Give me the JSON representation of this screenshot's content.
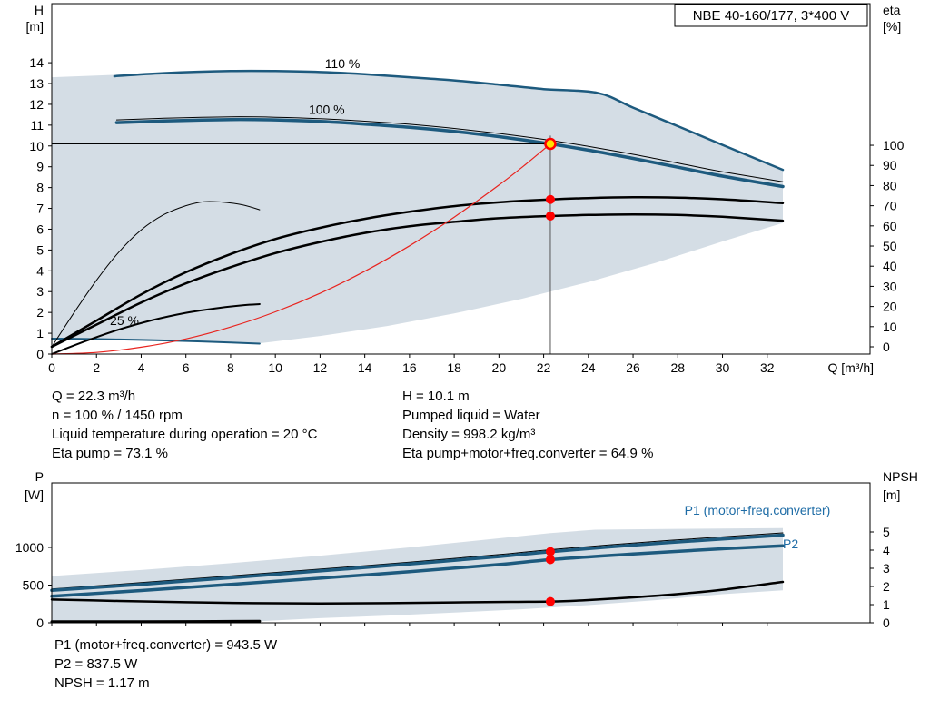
{
  "colors": {
    "blue": "#1d5a7e",
    "label_blue": "#1e6ca6",
    "envelope": "#ccd7e0",
    "red": "#e8241f",
    "red_dot": "#ff0000",
    "duty_yellow": "#ffe000",
    "black": "#000000",
    "duty_line": "#555555"
  },
  "info_block": {
    "left": [
      "Q = 22.3 m³/h",
      "n = 100 % / 1450 rpm",
      "Liquid temperature during operation = 20 °C",
      "Eta pump = 73.1 %"
    ],
    "right": [
      "H = 10.1 m",
      "Pumped liquid = Water",
      "Density = 998.2 kg/m³",
      "Eta pump+motor+freq.converter = 64.9 %"
    ]
  },
  "result_block": [
    "P1 (motor+freq.converter) = 943.5 W",
    "P2 = 837.5 W",
    "NPSH = 1.17 m"
  ],
  "chart_data": [
    {
      "name": "hq-chart",
      "type": "line",
      "title": "NBE 40-160/177, 3*400 V",
      "xlabel": "Q [m³/h]",
      "ylabel_left": [
        "H",
        "[m]"
      ],
      "ylabel_right": [
        "eta",
        "[%]"
      ],
      "xlim": [
        0,
        36.6
      ],
      "ylim_left": [
        0,
        16.84
      ],
      "ylim_right": [
        -3.6,
        170.3
      ],
      "x_ticks": [
        0,
        2,
        4,
        6,
        8,
        10,
        12,
        14,
        16,
        18,
        20,
        22,
        24,
        26,
        28,
        30,
        32
      ],
      "y_ticks_left": [
        0,
        1,
        2,
        3,
        4,
        5,
        6,
        7,
        8,
        9,
        10,
        11,
        12,
        13,
        14
      ],
      "y_ticks_right": [
        0,
        10,
        20,
        30,
        40,
        50,
        60,
        70,
        80,
        90,
        100
      ],
      "envelope": [
        [
          0,
          13.3
        ],
        [
          2,
          13.38
        ],
        [
          4,
          13.47
        ],
        [
          6,
          13.55
        ],
        [
          8,
          13.6
        ],
        [
          10,
          13.6
        ],
        [
          12,
          13.55
        ],
        [
          14,
          13.45
        ],
        [
          16,
          13.3
        ],
        [
          18,
          13.15
        ],
        [
          20,
          12.95
        ],
        [
          22,
          12.73
        ],
        [
          24.4,
          12.55
        ],
        [
          26,
          11.84
        ],
        [
          28,
          10.95
        ],
        [
          30,
          10.05
        ],
        [
          32.7,
          8.85
        ],
        [
          32.7,
          6.3
        ],
        [
          30,
          5.41
        ],
        [
          27,
          4.38
        ],
        [
          24,
          3.46
        ],
        [
          21,
          2.65
        ],
        [
          18,
          1.95
        ],
        [
          15,
          1.35
        ],
        [
          12,
          0.87
        ],
        [
          9.3,
          0.52
        ],
        [
          8,
          0.56
        ],
        [
          6,
          0.63
        ],
        [
          4,
          0.68
        ],
        [
          2,
          0.72
        ],
        [
          0,
          0.74
        ]
      ],
      "series": [
        {
          "name": "speed-curve-110",
          "axis": "left",
          "color": "blue",
          "w": 2.5,
          "pts": [
            [
              2.8,
              13.35
            ],
            [
              5,
              13.5
            ],
            [
              8,
              13.6
            ],
            [
              10,
              13.6
            ],
            [
              12,
              13.55
            ],
            [
              14,
              13.45
            ],
            [
              16,
              13.3
            ],
            [
              18,
              13.15
            ],
            [
              20,
              12.95
            ],
            [
              22,
              12.73
            ],
            [
              24.4,
              12.55
            ],
            [
              26,
              11.84
            ],
            [
              28,
              10.95
            ],
            [
              30,
              10.05
            ],
            [
              32.7,
              8.85
            ]
          ]
        },
        {
          "name": "speed-curve-100",
          "axis": "left",
          "color": "blue",
          "w": 3.5,
          "pts": [
            [
              2.9,
              11.12
            ],
            [
              5,
              11.2
            ],
            [
              8,
              11.27
            ],
            [
              10,
              11.25
            ],
            [
              12,
              11.18
            ],
            [
              14,
              11.05
            ],
            [
              16,
              10.9
            ],
            [
              18,
              10.7
            ],
            [
              20,
              10.45
            ],
            [
              22.3,
              10.1
            ],
            [
              24,
              9.8
            ],
            [
              26,
              9.4
            ],
            [
              28,
              8.98
            ],
            [
              30,
              8.55
            ],
            [
              32.7,
              8.05
            ]
          ]
        },
        {
          "name": "tolerance-curve-100",
          "axis": "left",
          "color": "black",
          "w": 1,
          "pts": [
            [
              2.9,
              11.25
            ],
            [
              5,
              11.33
            ],
            [
              8,
              11.4
            ],
            [
              10,
              11.38
            ],
            [
              12,
              11.31
            ],
            [
              14,
              11.19
            ],
            [
              16,
              11.04
            ],
            [
              18,
              10.84
            ],
            [
              20,
              10.6
            ],
            [
              22.3,
              10.27
            ],
            [
              24,
              9.98
            ],
            [
              26,
              9.6
            ],
            [
              28,
              9.18
            ],
            [
              30,
              8.76
            ],
            [
              32.7,
              8.28
            ]
          ]
        },
        {
          "name": "speed-curve-25",
          "axis": "left",
          "color": "blue",
          "w": 2,
          "pts": [
            [
              0,
              0.74
            ],
            [
              2,
              0.72
            ],
            [
              4,
              0.68
            ],
            [
              6,
              0.63
            ],
            [
              8,
              0.56
            ],
            [
              9.3,
              0.5
            ]
          ]
        },
        {
          "name": "eta-pump-curve",
          "axis": "right",
          "color": "black",
          "w": 2.5,
          "pts": [
            [
              0,
              0
            ],
            [
              2,
              13
            ],
            [
              4,
              26
            ],
            [
              6,
              37
            ],
            [
              8,
              46
            ],
            [
              10,
              53.5
            ],
            [
              12,
              59
            ],
            [
              14,
              63.5
            ],
            [
              16,
              67
            ],
            [
              18,
              69.8
            ],
            [
              20,
              71.7
            ],
            [
              22.3,
              73.1
            ],
            [
              24,
              73.8
            ],
            [
              26,
              74.2
            ],
            [
              28,
              74
            ],
            [
              30,
              73.2
            ],
            [
              32.7,
              71.3
            ]
          ]
        },
        {
          "name": "eta-total-curve",
          "axis": "right",
          "color": "black",
          "w": 2.5,
          "pts": [
            [
              0,
              0
            ],
            [
              2,
              11
            ],
            [
              4,
              22
            ],
            [
              6,
              31.5
            ],
            [
              8,
              39.5
            ],
            [
              10,
              46.5
            ],
            [
              12,
              52
            ],
            [
              14,
              56.5
            ],
            [
              16,
              59.8
            ],
            [
              18,
              62
            ],
            [
              20,
              63.8
            ],
            [
              22.3,
              64.9
            ],
            [
              24,
              65.4
            ],
            [
              26,
              65.7
            ],
            [
              28,
              65.4
            ],
            [
              30,
              64.5
            ],
            [
              32.7,
              62.6
            ]
          ]
        },
        {
          "name": "eta-part-load-curve",
          "axis": "right",
          "color": "black",
          "w": 1,
          "pts": [
            [
              0,
              0
            ],
            [
              1,
              17
            ],
            [
              2,
              33
            ],
            [
              3,
              47
            ],
            [
              4,
              58
            ],
            [
              5,
              65.5
            ],
            [
              6,
              70
            ],
            [
              6.8,
              72
            ],
            [
              7.6,
              71.8
            ],
            [
              8.5,
              70.5
            ],
            [
              9.3,
              68
            ]
          ]
        },
        {
          "name": "aux-curve-25",
          "axis": "left",
          "color": "black",
          "w": 2,
          "pts": [
            [
              0,
              0
            ],
            [
              1.5,
              0.62
            ],
            [
              3,
              1.18
            ],
            [
              4.5,
              1.63
            ],
            [
              6,
              1.98
            ],
            [
              7.5,
              2.22
            ],
            [
              8.6,
              2.35
            ],
            [
              9.3,
              2.4
            ]
          ]
        },
        {
          "name": "affinity-curve",
          "axis": "left",
          "color": "red",
          "w": 1.2,
          "pts": [
            [
              0,
              0
            ],
            [
              2,
              0.08
            ],
            [
              4,
              0.33
            ],
            [
              6,
              0.73
            ],
            [
              8,
              1.3
            ],
            [
              10,
              2.03
            ],
            [
              12,
              2.92
            ],
            [
              14,
              3.98
            ],
            [
              16,
              5.2
            ],
            [
              18,
              6.58
            ],
            [
              20,
              8.12
            ],
            [
              21.2,
              9.12
            ],
            [
              22.3,
              10.1
            ]
          ]
        }
      ],
      "curve_labels": [
        {
          "text": "110 %",
          "x": 13.0,
          "y": 13.75
        },
        {
          "text": "100 %",
          "x": 12.3,
          "y": 11.55
        },
        {
          "text": "25 %",
          "x": 3.25,
          "y": 1.4
        }
      ],
      "duty": {
        "q": 22.3,
        "h": 10.1,
        "v_top": 10.5
      },
      "markers": [
        {
          "name": "eta-pump-point",
          "kind": "dot",
          "axis": "right",
          "x": 22.3,
          "y": 73.1
        },
        {
          "name": "eta-total-point",
          "kind": "dot",
          "axis": "right",
          "x": 22.3,
          "y": 64.9
        },
        {
          "name": "duty-point",
          "kind": "duty",
          "axis": "left",
          "x": 22.3,
          "y": 10.1
        }
      ]
    },
    {
      "name": "power-npsh-chart",
      "type": "line",
      "xlabel": "",
      "ylabel_left": [
        "P",
        "[W]"
      ],
      "ylabel_right": [
        "NPSH",
        "[m]"
      ],
      "xlim": [
        0,
        36.6
      ],
      "ylim_left": [
        0,
        1855
      ],
      "ylim_right": [
        0,
        7.7
      ],
      "x_ticks": [
        0,
        2,
        4,
        6,
        8,
        10,
        12,
        14,
        16,
        18,
        20,
        22,
        24,
        26,
        28,
        30,
        32
      ],
      "y_ticks_left": [
        0,
        500,
        1000
      ],
      "y_ticks_right": [
        0,
        1,
        2,
        3,
        4,
        5
      ],
      "envelope": [
        [
          0,
          620
        ],
        [
          4,
          700
        ],
        [
          8,
          790
        ],
        [
          12,
          890
        ],
        [
          16,
          1000
        ],
        [
          20,
          1120
        ],
        [
          22.3,
          1190
        ],
        [
          24.3,
          1235
        ],
        [
          28,
          1246
        ],
        [
          32.7,
          1256
        ],
        [
          32.7,
          430
        ],
        [
          30,
          380
        ],
        [
          27,
          300
        ],
        [
          24,
          235
        ],
        [
          21,
          180
        ],
        [
          18,
          135
        ],
        [
          15,
          95
        ],
        [
          12,
          62
        ],
        [
          9.3,
          22
        ],
        [
          6,
          18
        ],
        [
          3,
          15
        ],
        [
          0,
          13
        ]
      ],
      "series": [
        {
          "name": "p1-tolerance-curve",
          "axis": "left",
          "color": "black",
          "w": 1,
          "pts": [
            [
              0,
              448
            ],
            [
              4,
              532
            ],
            [
              8,
              622
            ],
            [
              12,
              712
            ],
            [
              16,
              805
            ],
            [
              20,
              905
            ],
            [
              22.3,
              970
            ],
            [
              26,
              1058
            ],
            [
              30,
              1140
            ],
            [
              32.7,
              1192
            ]
          ]
        },
        {
          "name": "p1-curve",
          "axis": "left",
          "color": "blue",
          "w": 3.5,
          "pts": [
            [
              0,
              430
            ],
            [
              4,
              510
            ],
            [
              8,
              598
            ],
            [
              12,
              688
            ],
            [
              16,
              780
            ],
            [
              20,
              878
            ],
            [
              22.3,
              943.5
            ],
            [
              26,
              1030
            ],
            [
              30,
              1112
            ],
            [
              32.7,
              1162
            ]
          ]
        },
        {
          "name": "p2-curve",
          "axis": "left",
          "color": "blue",
          "w": 3.5,
          "pts": [
            [
              0,
              352
            ],
            [
              4,
              428
            ],
            [
              8,
              508
            ],
            [
              12,
              592
            ],
            [
              16,
              678
            ],
            [
              20,
              772
            ],
            [
              22.3,
              837.5
            ],
            [
              26,
              912
            ],
            [
              30,
              982
            ],
            [
              32.7,
              1020
            ]
          ]
        },
        {
          "name": "p-min-speed-curve",
          "axis": "left",
          "color": "black",
          "w": 3,
          "pts": [
            [
              0,
              14
            ],
            [
              3,
              15
            ],
            [
              6,
              17
            ],
            [
              9.3,
              20
            ]
          ]
        },
        {
          "name": "npsh-curve",
          "axis": "right",
          "color": "black",
          "w": 2.5,
          "pts": [
            [
              0,
              1.28
            ],
            [
              3,
              1.2
            ],
            [
              6,
              1.13
            ],
            [
              9,
              1.08
            ],
            [
              12,
              1.06
            ],
            [
              15,
              1.08
            ],
            [
              18,
              1.12
            ],
            [
              20.5,
              1.15
            ],
            [
              22.3,
              1.17
            ],
            [
              24,
              1.25
            ],
            [
              26,
              1.4
            ],
            [
              28,
              1.58
            ],
            [
              30,
              1.82
            ],
            [
              32.7,
              2.25
            ]
          ]
        }
      ],
      "curve_labels": [
        {
          "text": "P1 (motor+freq.converter)",
          "x": 28.3,
          "y": 1434,
          "color": "label_blue",
          "anchor": "start"
        },
        {
          "text": "P2",
          "x": 32.7,
          "y": 988,
          "color": "label_blue",
          "anchor": "start"
        }
      ],
      "markers": [
        {
          "name": "p1-point",
          "kind": "dot",
          "axis": "left",
          "x": 22.3,
          "y": 943.5
        },
        {
          "name": "p2-point",
          "kind": "dot",
          "axis": "left",
          "x": 22.3,
          "y": 837.5
        },
        {
          "name": "npsh-point",
          "kind": "dot",
          "axis": "right",
          "x": 22.3,
          "y": 1.17
        }
      ]
    }
  ]
}
